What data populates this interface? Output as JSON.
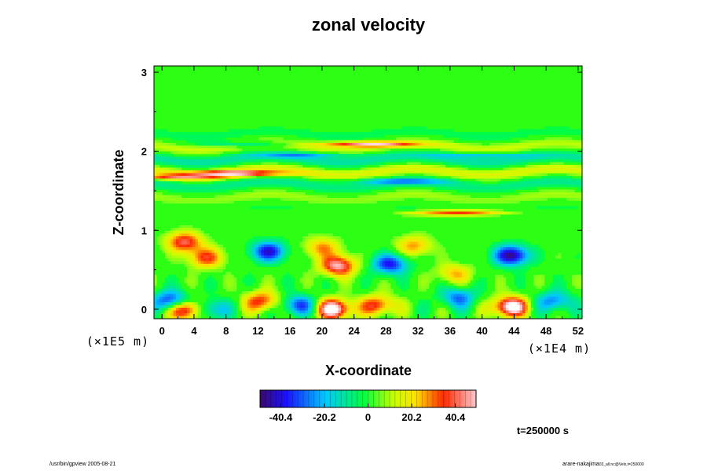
{
  "chart_data": {
    "type": "heatmap",
    "title": "zonal velocity",
    "xlabel": "X-coordinate",
    "ylabel": "Z-coordinate",
    "x_unit": "(×1E4 m)",
    "y_unit": "(×1E5 m)",
    "xlim": [
      -1,
      52.5
    ],
    "ylim": [
      -0.12,
      3.08
    ],
    "x_ticks": [
      "0",
      "4",
      "8",
      "12",
      "16",
      "20",
      "24",
      "28",
      "32",
      "36",
      "40",
      "44",
      "48",
      "52"
    ],
    "y_ticks": [
      "0",
      "1",
      "2",
      "3"
    ],
    "colorbar": {
      "range": [
        -50,
        50
      ],
      "tick_labels": [
        "-40.4",
        "-20.2",
        "0",
        "20.2",
        "40.4"
      ],
      "tick_values": [
        -40.4,
        -20.2,
        0,
        20.2,
        40.4
      ]
    },
    "features": [
      {
        "x": 3,
        "z": 0.0,
        "value": 55
      },
      {
        "x": 12.5,
        "z": 0.1,
        "value": 35
      },
      {
        "x": 21.5,
        "z": 0.0,
        "value": 55
      },
      {
        "x": 43.5,
        "z": 0.03,
        "value": 55
      },
      {
        "x": 27,
        "z": 0.05,
        "value": 35
      },
      {
        "x": 1.2,
        "z": 0.1,
        "value": -45
      },
      {
        "x": 6,
        "z": 0.0,
        "value": -30
      },
      {
        "x": 17,
        "z": 0.05,
        "value": -35
      },
      {
        "x": 37,
        "z": 0.15,
        "value": -30
      },
      {
        "x": 49,
        "z": 0.1,
        "value": -30
      },
      {
        "x": 13.3,
        "z": 0.73,
        "value": -42
      },
      {
        "x": 28.5,
        "z": 0.57,
        "value": -40
      },
      {
        "x": 43.7,
        "z": 0.68,
        "value": -50
      },
      {
        "x": 2.8,
        "z": 0.85,
        "value": 38
      },
      {
        "x": 5.5,
        "z": 0.65,
        "value": 32
      },
      {
        "x": 22,
        "z": 0.55,
        "value": 45
      },
      {
        "x": 20,
        "z": 0.78,
        "value": 25
      },
      {
        "x": 31.5,
        "z": 0.8,
        "value": 25
      },
      {
        "x": 36.5,
        "z": 0.45,
        "value": 22
      },
      {
        "x": 26,
        "z": 2.09,
        "value": 40
      },
      {
        "x": 9.5,
        "z": 1.72,
        "value": 40
      },
      {
        "x": 2,
        "z": 1.67,
        "value": 30
      },
      {
        "x": 37,
        "z": 1.22,
        "value": 35
      },
      {
        "x": 18,
        "z": 1.95,
        "value": -20
      },
      {
        "x": 40,
        "z": 1.95,
        "value": -20
      },
      {
        "x": 10,
        "z": 2.09,
        "value": -18
      },
      {
        "x": 30,
        "z": 1.62,
        "value": -22
      }
    ],
    "time_label": "t=250000 s"
  },
  "footer": {
    "left": "/usr/bin/gpview 2005-08-21",
    "right": "arare-nakajima",
    "right_small": "03_all.nc@Velx,t=250000"
  }
}
